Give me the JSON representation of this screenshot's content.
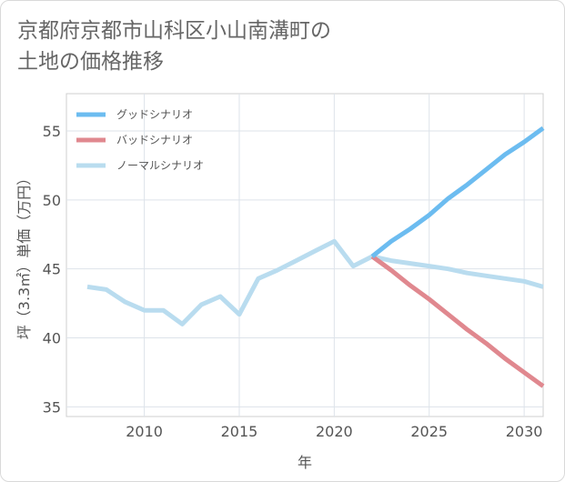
{
  "title": {
    "line1": "京都府京都市山科区小山南溝町の",
    "line2": "土地の価格推移"
  },
  "chart_data": {
    "type": "line",
    "title": "京都府京都市山科区小山南溝町の土地の価格推移",
    "xlabel": "年",
    "ylabel": "坪（3.3㎡）単価（万円）",
    "xlim": [
      2005.9,
      2031
    ],
    "ylim": [
      34.3,
      57.7
    ],
    "xticks": [
      2010,
      2015,
      2020,
      2025,
      2030
    ],
    "yticks": [
      35,
      40,
      45,
      50,
      55
    ],
    "grid": true,
    "legend_position": "top-left",
    "series": [
      {
        "name": "グッドシナリオ",
        "color": "#6cbcf0",
        "x": [
          2022,
          2023,
          2024,
          2025,
          2026,
          2027,
          2028,
          2029,
          2030,
          2031
        ],
        "values": [
          45.9,
          47.0,
          47.9,
          48.9,
          50.1,
          51.1,
          52.2,
          53.3,
          54.2,
          55.2
        ]
      },
      {
        "name": "バッドシナリオ",
        "color": "#e0888f",
        "x": [
          2022,
          2023,
          2024,
          2025,
          2026,
          2027,
          2028,
          2029,
          2030,
          2031
        ],
        "values": [
          45.9,
          44.9,
          43.8,
          42.8,
          41.7,
          40.6,
          39.6,
          38.5,
          37.5,
          36.5
        ]
      },
      {
        "name": "ノーマルシナリオ",
        "color": "#b9dcef",
        "x": [
          2007,
          2008,
          2009,
          2010,
          2011,
          2012,
          2013,
          2014,
          2015,
          2016,
          2017,
          2018,
          2019,
          2020,
          2021,
          2022,
          2023,
          2024,
          2025,
          2026,
          2027,
          2028,
          2029,
          2030,
          2031
        ],
        "values": [
          43.7,
          43.5,
          42.6,
          42.0,
          42.0,
          41.0,
          42.4,
          43.0,
          41.7,
          44.3,
          44.9,
          45.6,
          46.3,
          47.0,
          45.2,
          45.9,
          45.6,
          45.4,
          45.2,
          45.0,
          44.7,
          44.5,
          44.3,
          44.1,
          43.7
        ]
      }
    ]
  }
}
